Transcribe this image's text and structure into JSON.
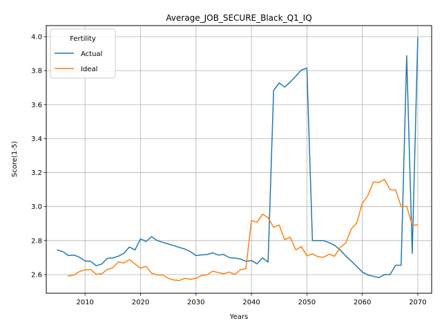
{
  "chart_data": {
    "type": "line",
    "title": "Average_JOB_SECURE_Black_Q1_IQ",
    "xlabel": "Years",
    "ylabel": "Score(1-5)",
    "xlim": [
      2003,
      2072.5
    ],
    "ylim": [
      2.49,
      4.065
    ],
    "xticks": [
      2010,
      2020,
      2030,
      2040,
      2050,
      2060,
      2070
    ],
    "yticks": [
      2.6,
      2.8,
      3.0,
      3.2,
      3.4,
      3.6,
      3.8,
      4.0
    ],
    "xtick_labels": [
      "2010",
      "2020",
      "2030",
      "2040",
      "2050",
      "2060",
      "2070"
    ],
    "ytick_labels": [
      "2.6",
      "2.8",
      "3.0",
      "3.2",
      "3.4",
      "3.6",
      "3.8",
      "4.0"
    ],
    "grid": true,
    "legend": {
      "title": "Fertility",
      "position": "top-left"
    },
    "series": [
      {
        "name": "Actual",
        "color": "#1f77b4",
        "x": [
          2005,
          2006,
          2007,
          2008,
          2009,
          2010,
          2011,
          2012,
          2013,
          2014,
          2015,
          2016,
          2017,
          2018,
          2019,
          2020,
          2021,
          2022,
          2023,
          2024,
          2025,
          2026,
          2027,
          2028,
          2029,
          2030,
          2031,
          2032,
          2033,
          2034,
          2035,
          2036,
          2037,
          2038,
          2039,
          2040,
          2041,
          2042,
          2043,
          2044,
          2045,
          2046,
          2047,
          2048,
          2049,
          2050,
          2051,
          2052,
          2053,
          2054,
          2055,
          2056,
          2057,
          2058,
          2059,
          2060,
          2061,
          2062,
          2063,
          2064,
          2065,
          2066,
          2067,
          2068,
          2069,
          2070
        ],
        "y": [
          2.745,
          2.735,
          2.712,
          2.715,
          2.702,
          2.68,
          2.678,
          2.652,
          2.662,
          2.695,
          2.698,
          2.708,
          2.725,
          2.762,
          2.745,
          2.81,
          2.795,
          2.823,
          2.8,
          2.79,
          2.78,
          2.77,
          2.76,
          2.75,
          2.735,
          2.712,
          2.716,
          2.718,
          2.728,
          2.715,
          2.718,
          2.7,
          2.697,
          2.692,
          2.678,
          2.683,
          2.663,
          2.698,
          2.673,
          3.683,
          3.728,
          3.703,
          3.733,
          3.768,
          3.803,
          3.815,
          2.8,
          2.8,
          2.8,
          2.788,
          2.772,
          2.745,
          2.71,
          2.68,
          2.648,
          2.615,
          2.598,
          2.59,
          2.582,
          2.6,
          2.6,
          2.655,
          2.655,
          3.888,
          2.725,
          3.995
        ]
      },
      {
        "name": "Ideal",
        "color": "#ff7f0e",
        "x": [
          2007,
          2008,
          2009,
          2010,
          2011,
          2012,
          2013,
          2014,
          2015,
          2016,
          2017,
          2018,
          2019,
          2020,
          2021,
          2022,
          2023,
          2024,
          2025,
          2026,
          2027,
          2028,
          2029,
          2030,
          2031,
          2032,
          2033,
          2034,
          2035,
          2036,
          2037,
          2038,
          2039,
          2040,
          2041,
          2042,
          2043,
          2044,
          2045,
          2046,
          2047,
          2048,
          2049,
          2050,
          2051,
          2052,
          2053,
          2054,
          2055,
          2056,
          2057,
          2058,
          2059,
          2060,
          2061,
          2062,
          2063,
          2064,
          2065,
          2066,
          2067,
          2068,
          2069,
          2070
        ],
        "y": [
          2.592,
          2.598,
          2.618,
          2.628,
          2.63,
          2.602,
          2.605,
          2.63,
          2.64,
          2.675,
          2.668,
          2.688,
          2.662,
          2.638,
          2.648,
          2.608,
          2.598,
          2.598,
          2.578,
          2.568,
          2.565,
          2.578,
          2.572,
          2.578,
          2.595,
          2.598,
          2.62,
          2.612,
          2.605,
          2.615,
          2.6,
          2.628,
          2.635,
          2.918,
          2.908,
          2.955,
          2.935,
          2.878,
          2.892,
          2.805,
          2.82,
          2.745,
          2.765,
          2.71,
          2.722,
          2.705,
          2.702,
          2.72,
          2.708,
          2.76,
          2.785,
          2.868,
          2.905,
          3.02,
          3.065,
          3.145,
          3.142,
          3.16,
          3.1,
          3.098,
          3.0,
          3.002,
          2.89,
          2.892
        ]
      }
    ]
  }
}
